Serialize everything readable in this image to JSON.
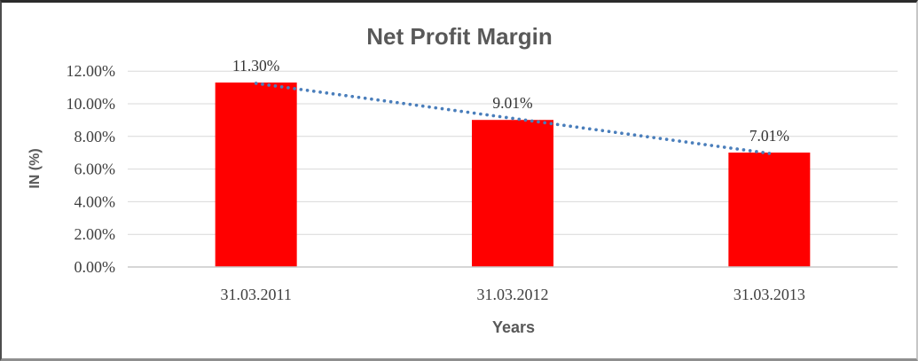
{
  "chart_data": {
    "type": "bar",
    "title": "Net Profit Margin",
    "categories": [
      "31.03.2011",
      "31.03.2012",
      "31.03.2013"
    ],
    "series": [
      {
        "name": "Net Profit Margin",
        "values": [
          11.3,
          9.01,
          7.01
        ]
      }
    ],
    "data_labels": [
      "11.30%",
      "9.01%",
      "7.01%"
    ],
    "xlabel": "Years",
    "ylabel": "IN (%)",
    "ylim": [
      0,
      12
    ],
    "ytick_step": 2,
    "ytick_labels": [
      "0.00%",
      "2.00%",
      "4.00%",
      "6.00%",
      "8.00%",
      "10.00%",
      "12.00%"
    ],
    "grid": true,
    "legend": "none",
    "trendline_info": {
      "type": "linear",
      "style": "dotted",
      "span": "first-to-last-category"
    },
    "colors": {
      "bar": "#ff0000",
      "trendline": "#4a7ebb",
      "gridline": "#d9d9d9",
      "axis_line": "#c9c9c9",
      "title_text": "#595959",
      "axis_title_text": "#595959",
      "tick_text": "#3f3f3f",
      "data_label_text": "#333333"
    }
  }
}
